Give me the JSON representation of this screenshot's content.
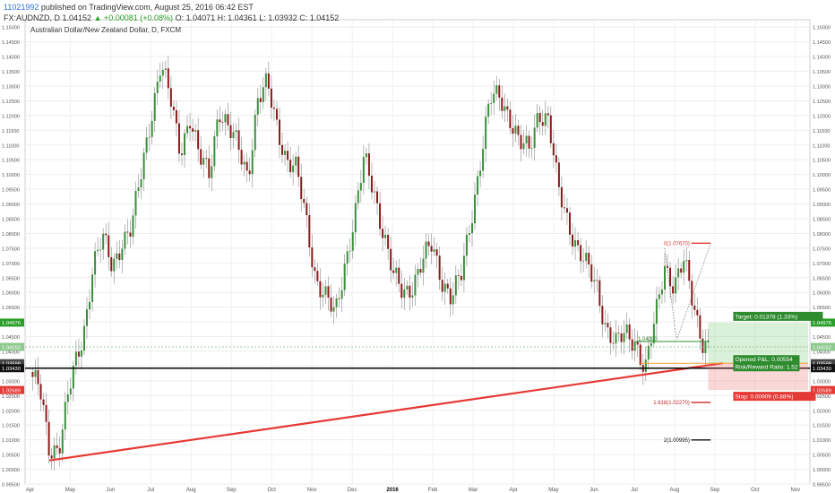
{
  "header": {
    "username": "11021992",
    "published": "published on TradingView.com, August 25, 2016 06:42 EST",
    "symbol_line": "FX:AUDNZD, D",
    "last": "1.04152",
    "change": "▲ +0.00081 (+0.08%)",
    "open": "O: 1.04071",
    "high": "H: 1.04361",
    "low": "L: 1.03932",
    "close": "C: 1.04152"
  },
  "chart_title": "Australian Dollar/New Zealand Dollar, D, FXCM",
  "chart_data": {
    "type": "candlestick",
    "title": "Australian Dollar/New Zealand Dollar, D, FXCM",
    "ylim": [
      0.995,
      1.1525
    ],
    "y_ticks": [
      "1.15000",
      "1.14500",
      "1.14000",
      "1.13500",
      "1.13000",
      "1.12500",
      "1.12000",
      "1.11500",
      "1.11000",
      "1.10500",
      "1.10000",
      "1.09500",
      "1.09000",
      "1.08500",
      "1.08000",
      "1.07500",
      "1.07000",
      "1.06500",
      "1.06000",
      "1.05500",
      "1.05000",
      "1.04500",
      "1.04000",
      "1.03500",
      "1.03000",
      "1.02500",
      "1.02000",
      "1.01500",
      "1.01000",
      "1.00500",
      "1.00000",
      "0.99500"
    ],
    "x_ticks": [
      "Apr",
      "May",
      "Jun",
      "Jul",
      "Aug",
      "Sep",
      "Oct",
      "Nov",
      "Dec",
      "2016",
      "Feb",
      "Mar",
      "Apr",
      "May",
      "Jun",
      "Jul",
      "Aug",
      "Sep",
      "Oct",
      "Nov"
    ],
    "close_path": [
      [
        2015.25,
        1.033
      ],
      [
        2015.27,
        1.027
      ],
      [
        2015.29,
        1.006
      ],
      [
        2015.31,
        1.0085
      ],
      [
        2015.33,
        1.026
      ],
      [
        2015.36,
        1.045
      ],
      [
        2015.38,
        1.07
      ],
      [
        2015.4,
        1.078
      ],
      [
        2015.42,
        1.068
      ],
      [
        2015.44,
        1.078
      ],
      [
        2015.46,
        1.082
      ],
      [
        2015.48,
        1.1
      ],
      [
        2015.5,
        1.12
      ],
      [
        2015.52,
        1.138
      ],
      [
        2015.54,
        1.125
      ],
      [
        2015.56,
        1.108
      ],
      [
        2015.58,
        1.12
      ],
      [
        2015.6,
        1.105
      ],
      [
        2015.62,
        1.1
      ],
      [
        2015.64,
        1.123
      ],
      [
        2015.66,
        1.115
      ],
      [
        2015.68,
        1.109
      ],
      [
        2015.7,
        1.1
      ],
      [
        2015.72,
        1.125
      ],
      [
        2015.74,
        1.13
      ],
      [
        2015.76,
        1.117
      ],
      [
        2015.78,
        1.105
      ],
      [
        2015.8,
        1.101
      ],
      [
        2015.82,
        1.085
      ],
      [
        2015.84,
        1.065
      ],
      [
        2015.86,
        1.058
      ],
      [
        2015.88,
        1.052
      ],
      [
        2015.9,
        1.07
      ],
      [
        2015.92,
        1.085
      ],
      [
        2015.94,
        1.105
      ],
      [
        2015.96,
        1.095
      ],
      [
        2015.98,
        1.08
      ],
      [
        2016.0,
        1.065
      ],
      [
        2016.02,
        1.06
      ],
      [
        2016.04,
        1.063
      ],
      [
        2016.06,
        1.07
      ],
      [
        2016.08,
        1.076
      ],
      [
        2016.1,
        1.065
      ],
      [
        2016.12,
        1.058
      ],
      [
        2016.14,
        1.065
      ],
      [
        2016.16,
        1.085
      ],
      [
        2016.18,
        1.105
      ],
      [
        2016.2,
        1.125
      ],
      [
        2016.22,
        1.127
      ],
      [
        2016.24,
        1.12
      ],
      [
        2016.26,
        1.11
      ],
      [
        2016.28,
        1.108
      ],
      [
        2016.3,
        1.122
      ],
      [
        2016.32,
        1.118
      ],
      [
        2016.34,
        1.095
      ],
      [
        2016.36,
        1.085
      ],
      [
        2016.38,
        1.075
      ],
      [
        2016.4,
        1.068
      ],
      [
        2016.42,
        1.062
      ],
      [
        2016.44,
        1.048
      ],
      [
        2016.46,
        1.042
      ],
      [
        2016.48,
        1.046
      ],
      [
        2016.5,
        1.044
      ],
      [
        2016.52,
        1.033
      ],
      [
        2016.54,
        1.05
      ],
      [
        2016.56,
        1.07
      ],
      [
        2016.58,
        1.062
      ],
      [
        2016.6,
        1.07
      ],
      [
        2016.62,
        1.056
      ],
      [
        2016.64,
        1.043
      ],
      [
        2016.65,
        1.0415
      ]
    ],
    "price_labels": [
      {
        "text": "1.04976",
        "value": 1.04976,
        "color": "#2aa02a"
      },
      {
        "text": "1.04152",
        "value": 1.04152,
        "color": "#8fc98f"
      },
      {
        "text": "1.03598",
        "value": 1.03598,
        "color": "#444444"
      },
      {
        "text": "1.03430",
        "value": 1.0343,
        "color": "#111111"
      },
      {
        "text": "1.02689",
        "value": 1.02689,
        "color": "#e53935"
      }
    ],
    "fib_levels": [
      {
        "text": "0(1.07670)",
        "value": 1.0767,
        "color": "#e53935"
      },
      {
        "text": "1.618(1.02270)",
        "value": 1.0227,
        "color": "#c62828"
      },
      {
        "text": "2(1.00995)",
        "value": 1.00995,
        "color": "#111111"
      }
    ],
    "trendline": {
      "from": [
        2015.29,
        1.003
      ],
      "to": [
        2016.68,
        1.036
      ],
      "color": "#e53935"
    },
    "horizontal_line": {
      "value": 1.0343,
      "color": "#000000"
    },
    "position": {
      "entry": 1.03598,
      "target_price": 1.04976,
      "stop_price": 1.02689,
      "target_label": "Target: 0.01378 (1.33%)",
      "opened_label": "Opened P&L: 0.00554",
      "ratio_label": "Risk/Reward Ratio: 1.52",
      "stop_label": "Stop: 0.00909 (0.88%)"
    },
    "annotations": [
      {
        "text": "1.04333",
        "value": 1.04333
      }
    ]
  }
}
